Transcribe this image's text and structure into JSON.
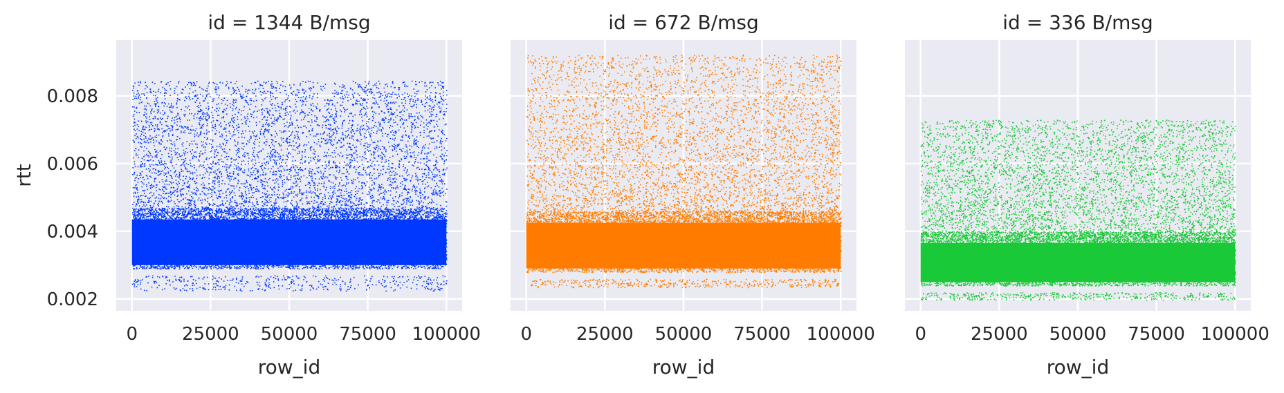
{
  "chart_data": [
    {
      "type": "scatter",
      "title": "id = 1344 B/msg",
      "xlabel": "row_id",
      "ylabel": "rtt",
      "xlim": [
        -5000,
        105000
      ],
      "ylim": [
        0.00165,
        0.00965
      ],
      "xticks": [
        0,
        25000,
        50000,
        75000,
        100000
      ],
      "xtick_labels": [
        "0",
        "25000",
        "50000",
        "75000",
        "100000"
      ],
      "yticks": [
        0.002,
        0.004,
        0.006,
        0.008
      ],
      "ytick_labels": [
        "0.002",
        "0.004",
        "0.006",
        "0.008"
      ],
      "color": "#0038ff",
      "background": "#eaeaf2",
      "grid": true,
      "point_count": 100000,
      "x_range": [
        0,
        100000
      ],
      "y_range": [
        0.00225,
        0.00845
      ],
      "dense_band": [
        0.0029,
        0.0047
      ],
      "typical_floor": 0.0027
    },
    {
      "type": "scatter",
      "title": "id = 672 B/msg",
      "xlabel": "row_id",
      "ylabel": "",
      "xlim": [
        -5000,
        105000
      ],
      "ylim": [
        0.00165,
        0.00965
      ],
      "xticks": [
        0,
        25000,
        50000,
        75000,
        100000
      ],
      "xtick_labels": [
        "0",
        "25000",
        "50000",
        "75000",
        "100000"
      ],
      "yticks": [
        0.002,
        0.004,
        0.006,
        0.008
      ],
      "ytick_labels": [],
      "color": "#ff7c00",
      "background": "#eaeaf2",
      "grid": true,
      "point_count": 100000,
      "x_range": [
        0,
        100000
      ],
      "y_range": [
        0.00235,
        0.00922
      ],
      "dense_band": [
        0.0028,
        0.0046
      ],
      "typical_floor": 0.0026
    },
    {
      "type": "scatter",
      "title": "id = 336 B/msg",
      "xlabel": "row_id",
      "ylabel": "",
      "xlim": [
        -5000,
        105000
      ],
      "ylim": [
        0.00165,
        0.00965
      ],
      "xticks": [
        0,
        25000,
        50000,
        75000,
        100000
      ],
      "xtick_labels": [
        "0",
        "25000",
        "50000",
        "75000",
        "100000"
      ],
      "yticks": [
        0.002,
        0.004,
        0.006,
        0.008
      ],
      "ytick_labels": [],
      "color": "#1ac938",
      "background": "#eaeaf2",
      "grid": true,
      "point_count": 100000,
      "x_range": [
        0,
        100000
      ],
      "y_range": [
        0.00198,
        0.0073
      ],
      "dense_band": [
        0.0024,
        0.004
      ],
      "typical_floor": 0.0022
    }
  ]
}
